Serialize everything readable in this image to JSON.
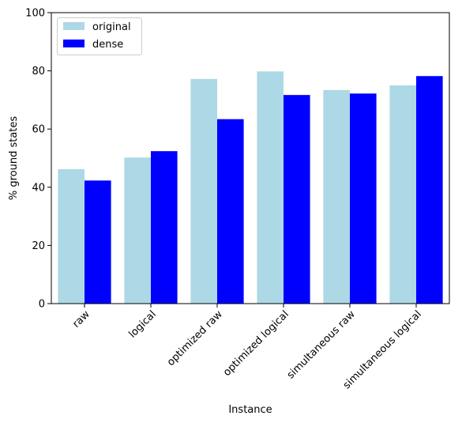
{
  "chart_data": {
    "type": "bar",
    "title": "",
    "xlabel": "Instance",
    "ylabel": "% ground states",
    "categories": [
      "raw",
      "logical",
      "optimized raw",
      "optimized logical",
      "simultaneous raw",
      "simultaneous logical"
    ],
    "series": [
      {
        "name": "original",
        "color": "#add8e6",
        "values": [
          46.2,
          50.2,
          77.2,
          79.8,
          73.4,
          75.0
        ]
      },
      {
        "name": "dense",
        "color": "#0000ff",
        "values": [
          42.3,
          52.4,
          63.4,
          71.7,
          72.2,
          78.2
        ]
      }
    ],
    "ylim": [
      0,
      100
    ],
    "yticks": [
      0,
      20,
      40,
      60,
      80,
      100
    ],
    "legend_position": "top-left",
    "grid": false
  }
}
